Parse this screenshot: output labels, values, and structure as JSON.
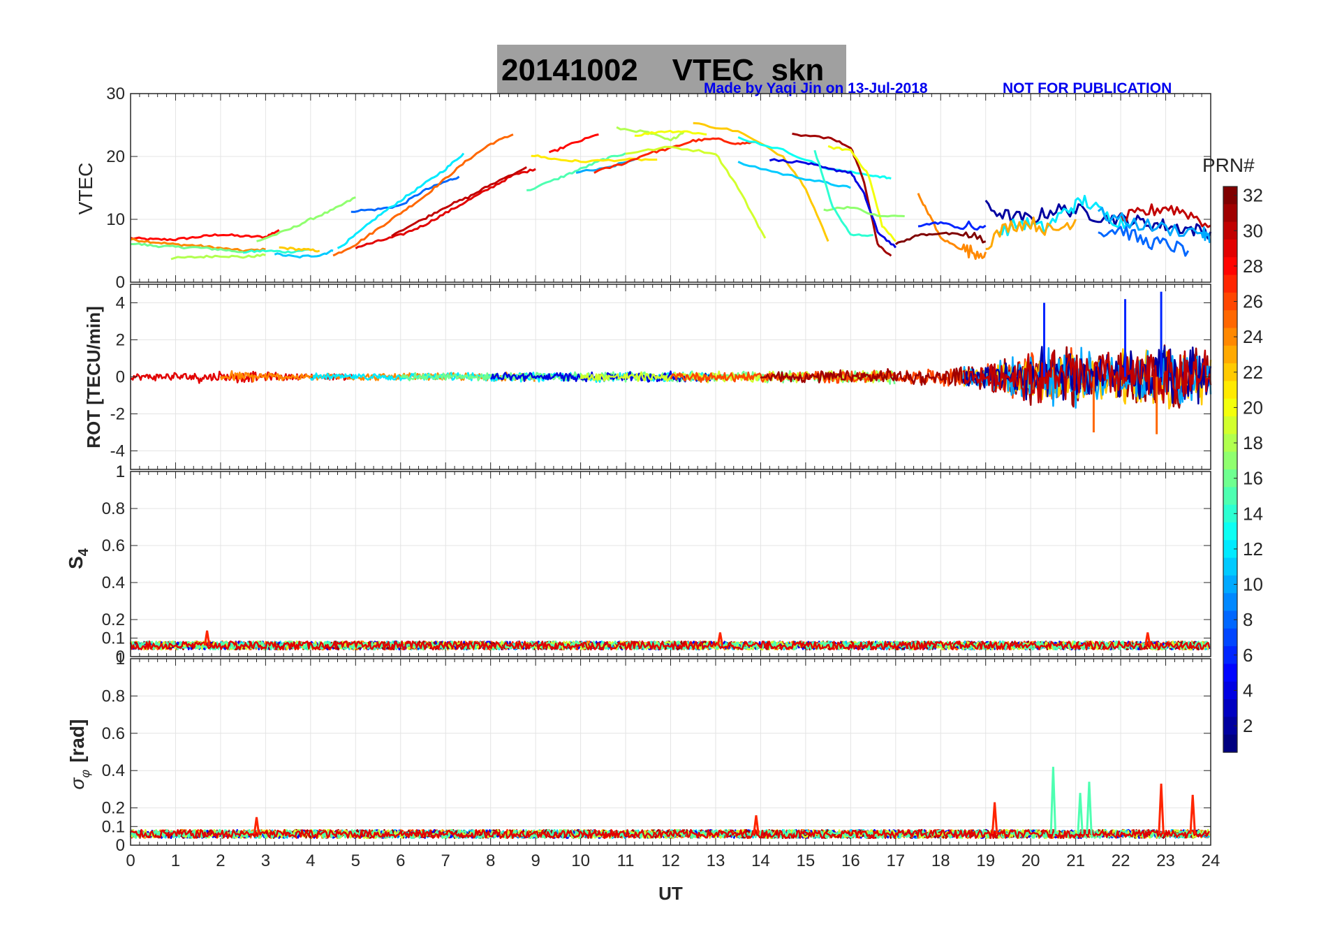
{
  "title": {
    "date": "20141002",
    "product": "VTEC",
    "station": "skn"
  },
  "credit": {
    "made_by": "Made by Yaqi Jin on 13-Jul-2018",
    "notice": "NOT FOR PUBLICATION"
  },
  "chart_data": [
    {
      "type": "line",
      "panel": "vtec",
      "ylabel": "VTEC",
      "ylim": [
        0,
        30
      ],
      "yticks": [
        0,
        10,
        20,
        30
      ],
      "xlim": [
        0,
        24
      ],
      "grid": true,
      "series": [
        {
          "name": "PRN 28",
          "prn": 28,
          "x": [
            0,
            0.5,
            1,
            1.5,
            2,
            2.5,
            3,
            3.3
          ],
          "y": [
            7,
            6.8,
            6.8,
            7.2,
            7.6,
            7.3,
            7.2,
            8.3
          ]
        },
        {
          "name": "PRN 24",
          "prn": 24,
          "x": [
            0,
            0.5,
            1,
            1.5,
            2,
            2.5,
            3
          ],
          "y": [
            6.8,
            6.4,
            6,
            5.8,
            5.4,
            5,
            5.2
          ]
        },
        {
          "name": "PRN 16",
          "prn": 16,
          "x": [
            0,
            0.5,
            1,
            1.5,
            2,
            2.5
          ],
          "y": [
            6.2,
            5.8,
            5.6,
            5.5,
            5.2,
            4.8
          ]
        },
        {
          "name": "PRN 18",
          "prn": 18,
          "x": [
            0.9,
            1.5,
            2,
            2.5,
            3
          ],
          "y": [
            3.8,
            4,
            4.2,
            4,
            4.3
          ]
        },
        {
          "name": "PRN 14",
          "prn": 14,
          "x": [
            2.5,
            3,
            3.5,
            4
          ],
          "y": [
            4.8,
            5,
            4.8,
            5.2
          ]
        },
        {
          "name": "PRN 17",
          "prn": 17,
          "x": [
            2.8,
            3.5,
            4,
            4.5,
            5
          ],
          "y": [
            6.5,
            8.3,
            10,
            11.5,
            13.5
          ]
        },
        {
          "name": "PRN 22",
          "prn": 22,
          "x": [
            3.3,
            3.8,
            4.2
          ],
          "y": [
            5.5,
            5.2,
            5
          ]
        },
        {
          "name": "PRN 11",
          "prn": 11,
          "x": [
            3.2,
            3.7,
            4.2,
            4.5
          ],
          "y": [
            4.5,
            4,
            4.3,
            5
          ]
        },
        {
          "name": "PRN 8",
          "prn": 8,
          "x": [
            4.9,
            5.5,
            6,
            6.5,
            7,
            7.3
          ],
          "y": [
            11.3,
            11.6,
            12.2,
            14.5,
            16,
            16.8
          ]
        },
        {
          "name": "PRN 12",
          "prn": 12,
          "x": [
            4.6,
            5,
            5.5,
            6,
            6.5,
            7,
            7.4
          ],
          "y": [
            5.3,
            7.5,
            10.5,
            13,
            15.5,
            18,
            20.5
          ]
        },
        {
          "name": "PRN 25",
          "prn": 25,
          "x": [
            4.5,
            5,
            5.5,
            6,
            6.5,
            7,
            7.5,
            8,
            8.5
          ],
          "y": [
            4.2,
            6,
            8.5,
            11,
            13.5,
            16.5,
            19.5,
            22,
            23.5
          ]
        },
        {
          "name": "PRN 29",
          "prn": 29,
          "x": [
            5,
            5.5,
            6,
            6.5,
            7,
            7.5,
            8,
            8.5,
            9
          ],
          "y": [
            5.5,
            6.5,
            7.5,
            9,
            11,
            13,
            15,
            17,
            18
          ]
        },
        {
          "name": "PRN 30",
          "prn": 30,
          "x": [
            5.8,
            6.5,
            7,
            7.5,
            8,
            8.8
          ],
          "y": [
            7.5,
            10,
            12,
            13.5,
            15.5,
            18.3
          ]
        },
        {
          "name": "PRN 15",
          "prn": 15,
          "x": [
            8.8,
            9.5,
            10,
            10.5,
            11
          ],
          "y": [
            14.5,
            16.5,
            18,
            19.5,
            20.5
          ]
        },
        {
          "name": "PRN 21",
          "prn": 21,
          "x": [
            8.9,
            9.5,
            10,
            11,
            11.7
          ],
          "y": [
            20.2,
            19.5,
            19.2,
            19.5,
            19.5
          ]
        },
        {
          "name": "PRN 28b",
          "prn": 28,
          "x": [
            9.3,
            9.8,
            10.4
          ],
          "y": [
            20.5,
            22,
            23.5
          ]
        },
        {
          "name": "PRN 10",
          "prn": 10,
          "x": [
            9.9,
            10.5,
            11.2
          ],
          "y": [
            17.5,
            18,
            19.5
          ]
        },
        {
          "name": "PRN 27",
          "prn": 27,
          "x": [
            10.3,
            11,
            11.5,
            12,
            12.5,
            13,
            13.5,
            13.9
          ],
          "y": [
            17.5,
            19,
            20.5,
            21.3,
            22.5,
            22.8,
            22,
            22.3
          ]
        },
        {
          "name": "PRN 18b",
          "prn": 18,
          "x": [
            10.8,
            11.5,
            12,
            12.3
          ],
          "y": [
            24.5,
            23.8,
            22.5,
            24
          ]
        },
        {
          "name": "PRN 20",
          "prn": 20,
          "x": [
            11.2,
            11.8,
            12.3,
            12.8
          ],
          "y": [
            23.3,
            24,
            24,
            23.5
          ]
        },
        {
          "name": "PRN 19",
          "prn": 19,
          "x": [
            11,
            12,
            13,
            13.5,
            14.1
          ],
          "y": [
            20.5,
            21.5,
            20.5,
            15,
            7
          ]
        },
        {
          "name": "PRN 22b",
          "prn": 22,
          "x": [
            12.5,
            13.5,
            14.5,
            15,
            15.5
          ],
          "y": [
            25.3,
            24,
            20,
            15,
            6.5
          ]
        },
        {
          "name": "PRN 13",
          "prn": 13,
          "x": [
            13.5,
            14.5,
            15.5,
            16.5,
            16.9
          ],
          "y": [
            23,
            21,
            18,
            17,
            16.5
          ]
        },
        {
          "name": "PRN 11b",
          "prn": 11,
          "x": [
            13.5,
            14.5,
            15.3,
            16
          ],
          "y": [
            19,
            17.2,
            16,
            15
          ]
        },
        {
          "name": "PRN 31",
          "prn": 31,
          "x": [
            14.7,
            15.5,
            16,
            16.3,
            16.6,
            16.9
          ],
          "y": [
            23.5,
            23,
            21.5,
            16,
            6,
            4.2
          ]
        },
        {
          "name": "PRN 4",
          "prn": 4,
          "x": [
            14.2,
            15,
            15.5,
            16,
            16.3,
            16.6,
            17
          ],
          "y": [
            19.5,
            19,
            18,
            17.5,
            14,
            8,
            5.5
          ]
        },
        {
          "name": "PRN 20b",
          "prn": 20,
          "x": [
            15.5,
            16,
            16.4,
            16.7,
            17
          ],
          "y": [
            21.5,
            21,
            17,
            9,
            6.5
          ]
        },
        {
          "name": "PRN 17b",
          "prn": 17,
          "x": [
            15.4,
            16,
            16.6,
            17.2
          ],
          "y": [
            11.5,
            12,
            10.5,
            10.5
          ]
        },
        {
          "name": "PRN 14b",
          "prn": 14,
          "x": [
            15.2,
            15.6,
            16,
            16.5
          ],
          "y": [
            21,
            12,
            7.5,
            7.5
          ]
        },
        {
          "name": "PRN 24b",
          "prn": 24,
          "x": [
            17.5,
            17.8,
            18,
            18.4,
            18.7,
            19
          ],
          "y": [
            14,
            10,
            7,
            5.5,
            4.8,
            4.8
          ]
        },
        {
          "name": "PRN 32",
          "prn": 32,
          "x": [
            17,
            17.5,
            18,
            18.5,
            19
          ],
          "y": [
            6,
            7.5,
            7.8,
            7.5,
            6.5
          ]
        },
        {
          "name": "PRN 6",
          "prn": 6,
          "x": [
            17.5,
            18,
            18.5,
            19
          ],
          "y": [
            9,
            9.5,
            8.5,
            9
          ]
        },
        {
          "name": "PRN 2",
          "prn": 2,
          "x": [
            19,
            19.5,
            20,
            20.5,
            21,
            21.5,
            22,
            22.5,
            23,
            23.5,
            24
          ],
          "y": [
            12,
            10.5,
            10,
            11.5,
            11.5,
            10.5,
            10,
            9.5,
            9,
            8.5,
            8
          ]
        },
        {
          "name": "PRN 12b",
          "prn": 12,
          "x": [
            19.3,
            19.8,
            20.3,
            20.8,
            21.2,
            21.7,
            22.2
          ],
          "y": [
            8,
            9.5,
            8.5,
            11.5,
            13,
            10.5,
            9
          ]
        },
        {
          "name": "PRN 23",
          "prn": 23,
          "x": [
            19,
            19.5,
            20,
            20.5,
            21
          ],
          "y": [
            6,
            9,
            9.5,
            8,
            10
          ]
        },
        {
          "name": "PRN 8b",
          "prn": 8,
          "x": [
            21.5,
            22,
            22.5,
            23,
            23.5
          ],
          "y": [
            8,
            8.5,
            6.5,
            6,
            5
          ]
        },
        {
          "name": "PRN 30b",
          "prn": 30,
          "x": [
            22,
            22.5,
            23,
            23.5,
            24
          ],
          "y": [
            10,
            11,
            12,
            11,
            9
          ]
        },
        {
          "name": "PRN 10b",
          "prn": 10,
          "x": [
            21.5,
            22.2,
            23,
            23.8,
            24
          ],
          "y": [
            11,
            9.5,
            8.5,
            8,
            6.5
          ]
        }
      ]
    },
    {
      "type": "line",
      "panel": "rot",
      "ylabel": "ROT [TECU/min]",
      "ylim": [
        -5,
        5
      ],
      "yticks": [
        -4,
        -2,
        0,
        2,
        4
      ],
      "xlim": [
        0,
        24
      ],
      "grid": true,
      "description_of_envelope": "noise amplitude by hour",
      "amplitude_by_hour": {
        "x": [
          0,
          2,
          4,
          8,
          13,
          16,
          18,
          19,
          20,
          21,
          22,
          23,
          24
        ],
        "amp": [
          0.3,
          0.6,
          0.3,
          0.4,
          0.5,
          0.6,
          0.8,
          1.2,
          2.5,
          2.8,
          2.5,
          3.0,
          2.5
        ]
      },
      "peaks": [
        {
          "x": 20.3,
          "y": 4.0
        },
        {
          "x": 22.1,
          "y": 4.2
        },
        {
          "x": 22.9,
          "y": 4.6
        },
        {
          "x": 21.4,
          "y": -3.0
        },
        {
          "x": 22.8,
          "y": -3.1
        }
      ]
    },
    {
      "type": "line",
      "panel": "s4",
      "ylabel": "S4",
      "ylim": [
        0,
        1
      ],
      "yticks": [
        0,
        0.1,
        0.2,
        0.4,
        0.6,
        0.8,
        1
      ],
      "xlim": [
        0,
        24
      ],
      "grid": true,
      "baseline": 0.06,
      "noise": 0.02,
      "peaks": [
        {
          "x": 1.7,
          "y": 0.14
        },
        {
          "x": 13.1,
          "y": 0.13
        },
        {
          "x": 22.6,
          "y": 0.13
        }
      ]
    },
    {
      "type": "line",
      "panel": "sigma_phi",
      "ylabel": "σφ [rad]",
      "ylim": [
        0,
        1
      ],
      "yticks": [
        0,
        0.1,
        0.2,
        0.4,
        0.6,
        0.8
      ],
      "xlim": [
        0,
        24
      ],
      "xlabel": "UT",
      "xticks": [
        0,
        1,
        2,
        3,
        4,
        5,
        6,
        7,
        8,
        9,
        10,
        11,
        12,
        13,
        14,
        15,
        16,
        17,
        18,
        19,
        20,
        21,
        22,
        23,
        24
      ],
      "grid": true,
      "baseline": 0.06,
      "noise": 0.02,
      "peaks": [
        {
          "x": 2.8,
          "y": 0.15
        },
        {
          "x": 13.9,
          "y": 0.16
        },
        {
          "x": 19.2,
          "y": 0.23
        },
        {
          "x": 20.5,
          "y": 0.42
        },
        {
          "x": 21.1,
          "y": 0.28
        },
        {
          "x": 21.3,
          "y": 0.34
        },
        {
          "x": 22.9,
          "y": 0.33
        },
        {
          "x": 23.6,
          "y": 0.27
        }
      ]
    },
    {
      "type": "colorbar",
      "label": "PRN#",
      "range": [
        1,
        32
      ],
      "ticks": [
        2,
        4,
        6,
        8,
        10,
        12,
        14,
        16,
        18,
        20,
        22,
        24,
        26,
        28,
        30,
        32
      ],
      "colormap": "jet"
    }
  ],
  "colors": {
    "title_box": "#a0a0a0",
    "credit": "#0000ee",
    "grid": "#e4e4e4"
  }
}
